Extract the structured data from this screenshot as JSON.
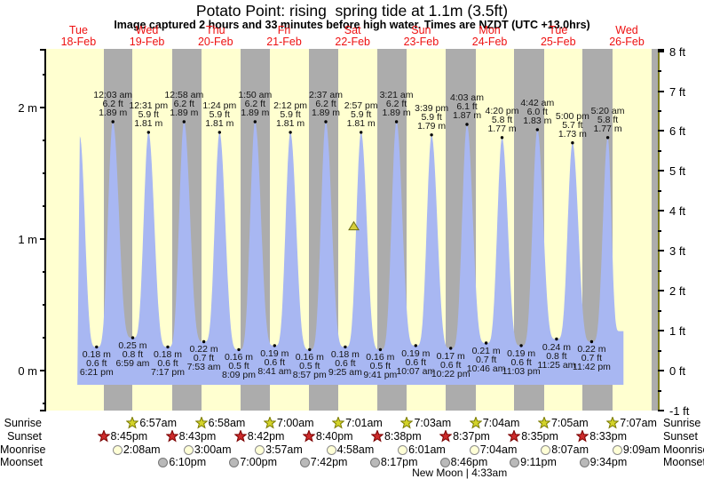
{
  "chart_data": {
    "type": "area",
    "title": "Potato Point: rising  spring tide at 1.1m (3.5ft)",
    "subtitle": "Image captured 2 hours and 33 minutes before high water. Times are NZDT (UTC +13.0hrs)",
    "x_axis_days": [
      {
        "dow": "Tue",
        "date": "18-Feb"
      },
      {
        "dow": "Wed",
        "date": "19-Feb"
      },
      {
        "dow": "Thu",
        "date": "20-Feb"
      },
      {
        "dow": "Fri",
        "date": "21-Feb"
      },
      {
        "dow": "Sat",
        "date": "22-Feb"
      },
      {
        "dow": "Sun",
        "date": "23-Feb"
      },
      {
        "dow": "Mon",
        "date": "24-Feb"
      },
      {
        "dow": "Tue",
        "date": "25-Feb"
      },
      {
        "dow": "Wed",
        "date": "26-Feb"
      }
    ],
    "y_axis_left": {
      "unit": "m",
      "major_ticks": [
        {
          "label": "0 m",
          "m": 0
        },
        {
          "label": "1 m",
          "m": 1
        },
        {
          "label": "2 m",
          "m": 2
        }
      ],
      "minor_step_m": 0.25
    },
    "y_axis_right": {
      "unit": "ft",
      "major_ticks": [
        {
          "label": "-1 ft",
          "ft": -1
        },
        {
          "label": "0 ft",
          "ft": 0
        },
        {
          "label": "1 ft",
          "ft": 1
        },
        {
          "label": "2 ft",
          "ft": 2
        },
        {
          "label": "3 ft",
          "ft": 3
        },
        {
          "label": "4 ft",
          "ft": 4
        },
        {
          "label": "5 ft",
          "ft": 5
        },
        {
          "label": "6 ft",
          "ft": 6
        },
        {
          "label": "7 ft",
          "ft": 7
        },
        {
          "label": "8 ft",
          "ft": 8
        }
      ],
      "minor_step_ft": 0.5
    },
    "tides": [
      {
        "type": "high",
        "t": 0.52,
        "h": 1.78
      },
      {
        "type": "low",
        "t": 0.7646,
        "h": 0.18,
        "lines": [
          "0.18 m",
          "0.6 ft",
          "6:21 pm"
        ]
      },
      {
        "type": "high",
        "t": 1.0021,
        "h": 1.89,
        "lines": [
          "12:03 am",
          "6.2 ft",
          "1.89 m"
        ]
      },
      {
        "type": "low",
        "t": 1.291,
        "h": 0.25,
        "lines": [
          "0.25 m",
          "0.8 ft",
          "6:59 am"
        ]
      },
      {
        "type": "high",
        "t": 1.5215,
        "h": 1.81,
        "lines": [
          "12:31 pm",
          "5.9 ft",
          "1.81 m"
        ]
      },
      {
        "type": "low",
        "t": 1.8035,
        "h": 0.18,
        "lines": [
          "0.18 m",
          "0.6 ft",
          "7:17 pm"
        ]
      },
      {
        "type": "high",
        "t": 2.0403,
        "h": 1.89,
        "lines": [
          "12:58 am",
          "6.2 ft",
          "1.89 m"
        ]
      },
      {
        "type": "low",
        "t": 2.3285,
        "h": 0.22,
        "lines": [
          "0.22 m",
          "0.7 ft",
          "7:53 am"
        ]
      },
      {
        "type": "high",
        "t": 2.5583,
        "h": 1.81,
        "lines": [
          "1:24 pm",
          "5.9 ft",
          "1.81 m"
        ]
      },
      {
        "type": "low",
        "t": 2.8396,
        "h": 0.16,
        "lines": [
          "0.16 m",
          "0.5 ft",
          "8:09 pm"
        ]
      },
      {
        "type": "high",
        "t": 3.0764,
        "h": 1.89,
        "lines": [
          "1:50 am",
          "6.2 ft",
          "1.89 m"
        ]
      },
      {
        "type": "low",
        "t": 3.3618,
        "h": 0.19,
        "lines": [
          "0.19 m",
          "0.6 ft",
          "8:41 am"
        ]
      },
      {
        "type": "high",
        "t": 3.5917,
        "h": 1.81,
        "lines": [
          "2:12 pm",
          "5.9 ft",
          "1.81 m"
        ]
      },
      {
        "type": "low",
        "t": 3.8729,
        "h": 0.16,
        "lines": [
          "0.16 m",
          "0.5 ft",
          "8:57 pm"
        ]
      },
      {
        "type": "high",
        "t": 4.109,
        "h": 1.89,
        "lines": [
          "2:37 am",
          "6.2 ft",
          "1.89 m"
        ]
      },
      {
        "type": "low",
        "t": 4.3924,
        "h": 0.18,
        "lines": [
          "0.18 m",
          "0.6 ft",
          "9:25 am"
        ]
      },
      {
        "type": "high",
        "t": 4.6229,
        "h": 1.81,
        "lines": [
          "2:57 pm",
          "5.9 ft",
          "1.81 m"
        ]
      },
      {
        "type": "low",
        "t": 4.9035,
        "h": 0.16,
        "lines": [
          "0.16 m",
          "0.5 ft",
          "9:41 pm"
        ]
      },
      {
        "type": "high",
        "t": 5.1396,
        "h": 1.89,
        "lines": [
          "3:21 am",
          "6.2 ft",
          "1.89 m"
        ]
      },
      {
        "type": "low",
        "t": 5.4215,
        "h": 0.19,
        "lines": [
          "0.19 m",
          "0.6 ft",
          "10:07 am"
        ]
      },
      {
        "type": "high",
        "t": 5.6521,
        "h": 1.79,
        "lines": [
          "3:39 pm",
          "5.9 ft",
          "1.79 m"
        ]
      },
      {
        "type": "low",
        "t": 5.9319,
        "h": 0.17,
        "lines": [
          "0.17 m",
          "0.6 ft",
          "10:22 pm"
        ]
      },
      {
        "type": "high",
        "t": 6.1688,
        "h": 1.87,
        "lines": [
          "4:03 am",
          "6.1 ft",
          "1.87 m"
        ]
      },
      {
        "type": "low",
        "t": 6.4486,
        "h": 0.21,
        "lines": [
          "0.21 m",
          "0.7 ft",
          "10:46 am"
        ]
      },
      {
        "type": "high",
        "t": 6.6806,
        "h": 1.77,
        "lines": [
          "4:20 pm",
          "5.8 ft",
          "1.77 m"
        ]
      },
      {
        "type": "low",
        "t": 6.9604,
        "h": 0.19,
        "lines": [
          "0.19 m",
          "0.6 ft",
          "11:03 pm"
        ]
      },
      {
        "type": "high",
        "t": 7.1958,
        "h": 1.83,
        "lines": [
          "4:42 am",
          "6.0 ft",
          "1.83 m"
        ]
      },
      {
        "type": "low",
        "t": 7.4757,
        "h": 0.24,
        "lines": [
          "0.24 m",
          "0.8 ft",
          "11:25 am"
        ]
      },
      {
        "type": "high",
        "t": 7.7083,
        "h": 1.73,
        "lines": [
          "5:00 pm",
          "5.7 ft",
          "1.73 m"
        ]
      },
      {
        "type": "low",
        "t": 7.9875,
        "h": 0.22,
        "lines": [
          "0.22 m",
          "0.7 ft",
          "11:42 pm"
        ]
      },
      {
        "type": "high",
        "t": 8.2222,
        "h": 1.77,
        "lines": [
          "5:20 am",
          "5.8 ft",
          "1.77 m"
        ]
      },
      {
        "type": "low",
        "t": 8.4,
        "h": 0.3
      }
    ],
    "current_marker": {
      "t": 4.517,
      "level_m": 1.1
    },
    "sun_moon_rows": [
      {
        "id": "sunrise",
        "label": "Sunrise",
        "icon": "sunrise-star-icon",
        "events": [
          {
            "time": "6:57am",
            "t": 1.28958
          },
          {
            "time": "6:58am",
            "t": 2.29028
          },
          {
            "time": "7:00am",
            "t": 3.29167
          },
          {
            "time": "7:01am",
            "t": 4.29236
          },
          {
            "time": "7:03am",
            "t": 5.29375
          },
          {
            "time": "7:04am",
            "t": 6.29444
          },
          {
            "time": "7:05am",
            "t": 7.29514
          },
          {
            "time": "7:07am",
            "t": 8.29653
          }
        ]
      },
      {
        "id": "sunset",
        "label": "Sunset",
        "icon": "sunset-star-icon",
        "events": [
          {
            "time": "8:45pm",
            "t": 0.86458
          },
          {
            "time": "8:43pm",
            "t": 1.86319
          },
          {
            "time": "8:42pm",
            "t": 2.8625
          },
          {
            "time": "8:40pm",
            "t": 3.86111
          },
          {
            "time": "8:38pm",
            "t": 4.85972
          },
          {
            "time": "8:37pm",
            "t": 5.85903
          },
          {
            "time": "8:35pm",
            "t": 6.85764
          },
          {
            "time": "8:33pm",
            "t": 7.85625
          }
        ]
      },
      {
        "id": "moonrise",
        "label": "Moonrise",
        "icon": "moonrise-circle-icon",
        "events": [
          {
            "time": "2:08am",
            "t": 1.08889
          },
          {
            "time": "3:00am",
            "t": 2.125
          },
          {
            "time": "3:57am",
            "t": 3.16458
          },
          {
            "time": "4:58am",
            "t": 4.20694
          },
          {
            "time": "6:01am",
            "t": 5.25069
          },
          {
            "time": "7:04am",
            "t": 6.29444
          },
          {
            "time": "8:07am",
            "t": 7.33819
          },
          {
            "time": "9:09am",
            "t": 8.38125
          }
        ]
      },
      {
        "id": "moonset",
        "label": "Moonset",
        "icon": "moonset-circle-icon",
        "events": [
          {
            "time": "6:10pm",
            "t": 1.75694
          },
          {
            "time": "7:00pm",
            "t": 2.79167
          },
          {
            "time": "7:42pm",
            "t": 3.82083
          },
          {
            "time": "8:17pm",
            "t": 4.84514
          },
          {
            "time": "8:46pm",
            "t": 5.86528
          },
          {
            "time": "9:11pm",
            "t": 6.88264
          },
          {
            "time": "9:34pm",
            "t": 7.89861
          }
        ]
      }
    ],
    "moon_phase": {
      "text": "New Moon | 4:33am",
      "t": 6.19
    },
    "colors": {
      "day_bg": "#ffffd0",
      "night_bg": "#acacac",
      "water": "#a8b7f2",
      "day_label": "#ee1111",
      "marker_fill": "#d6cf3a",
      "marker_stroke": "#6e6e14",
      "sunrise_star": "#d3d329",
      "sunset_star": "#cc2b2b",
      "moonrise_circle": "#ffffd6",
      "moonset_circle": "#b9b9b9",
      "axis_right_line": "#7d7d1f"
    }
  }
}
